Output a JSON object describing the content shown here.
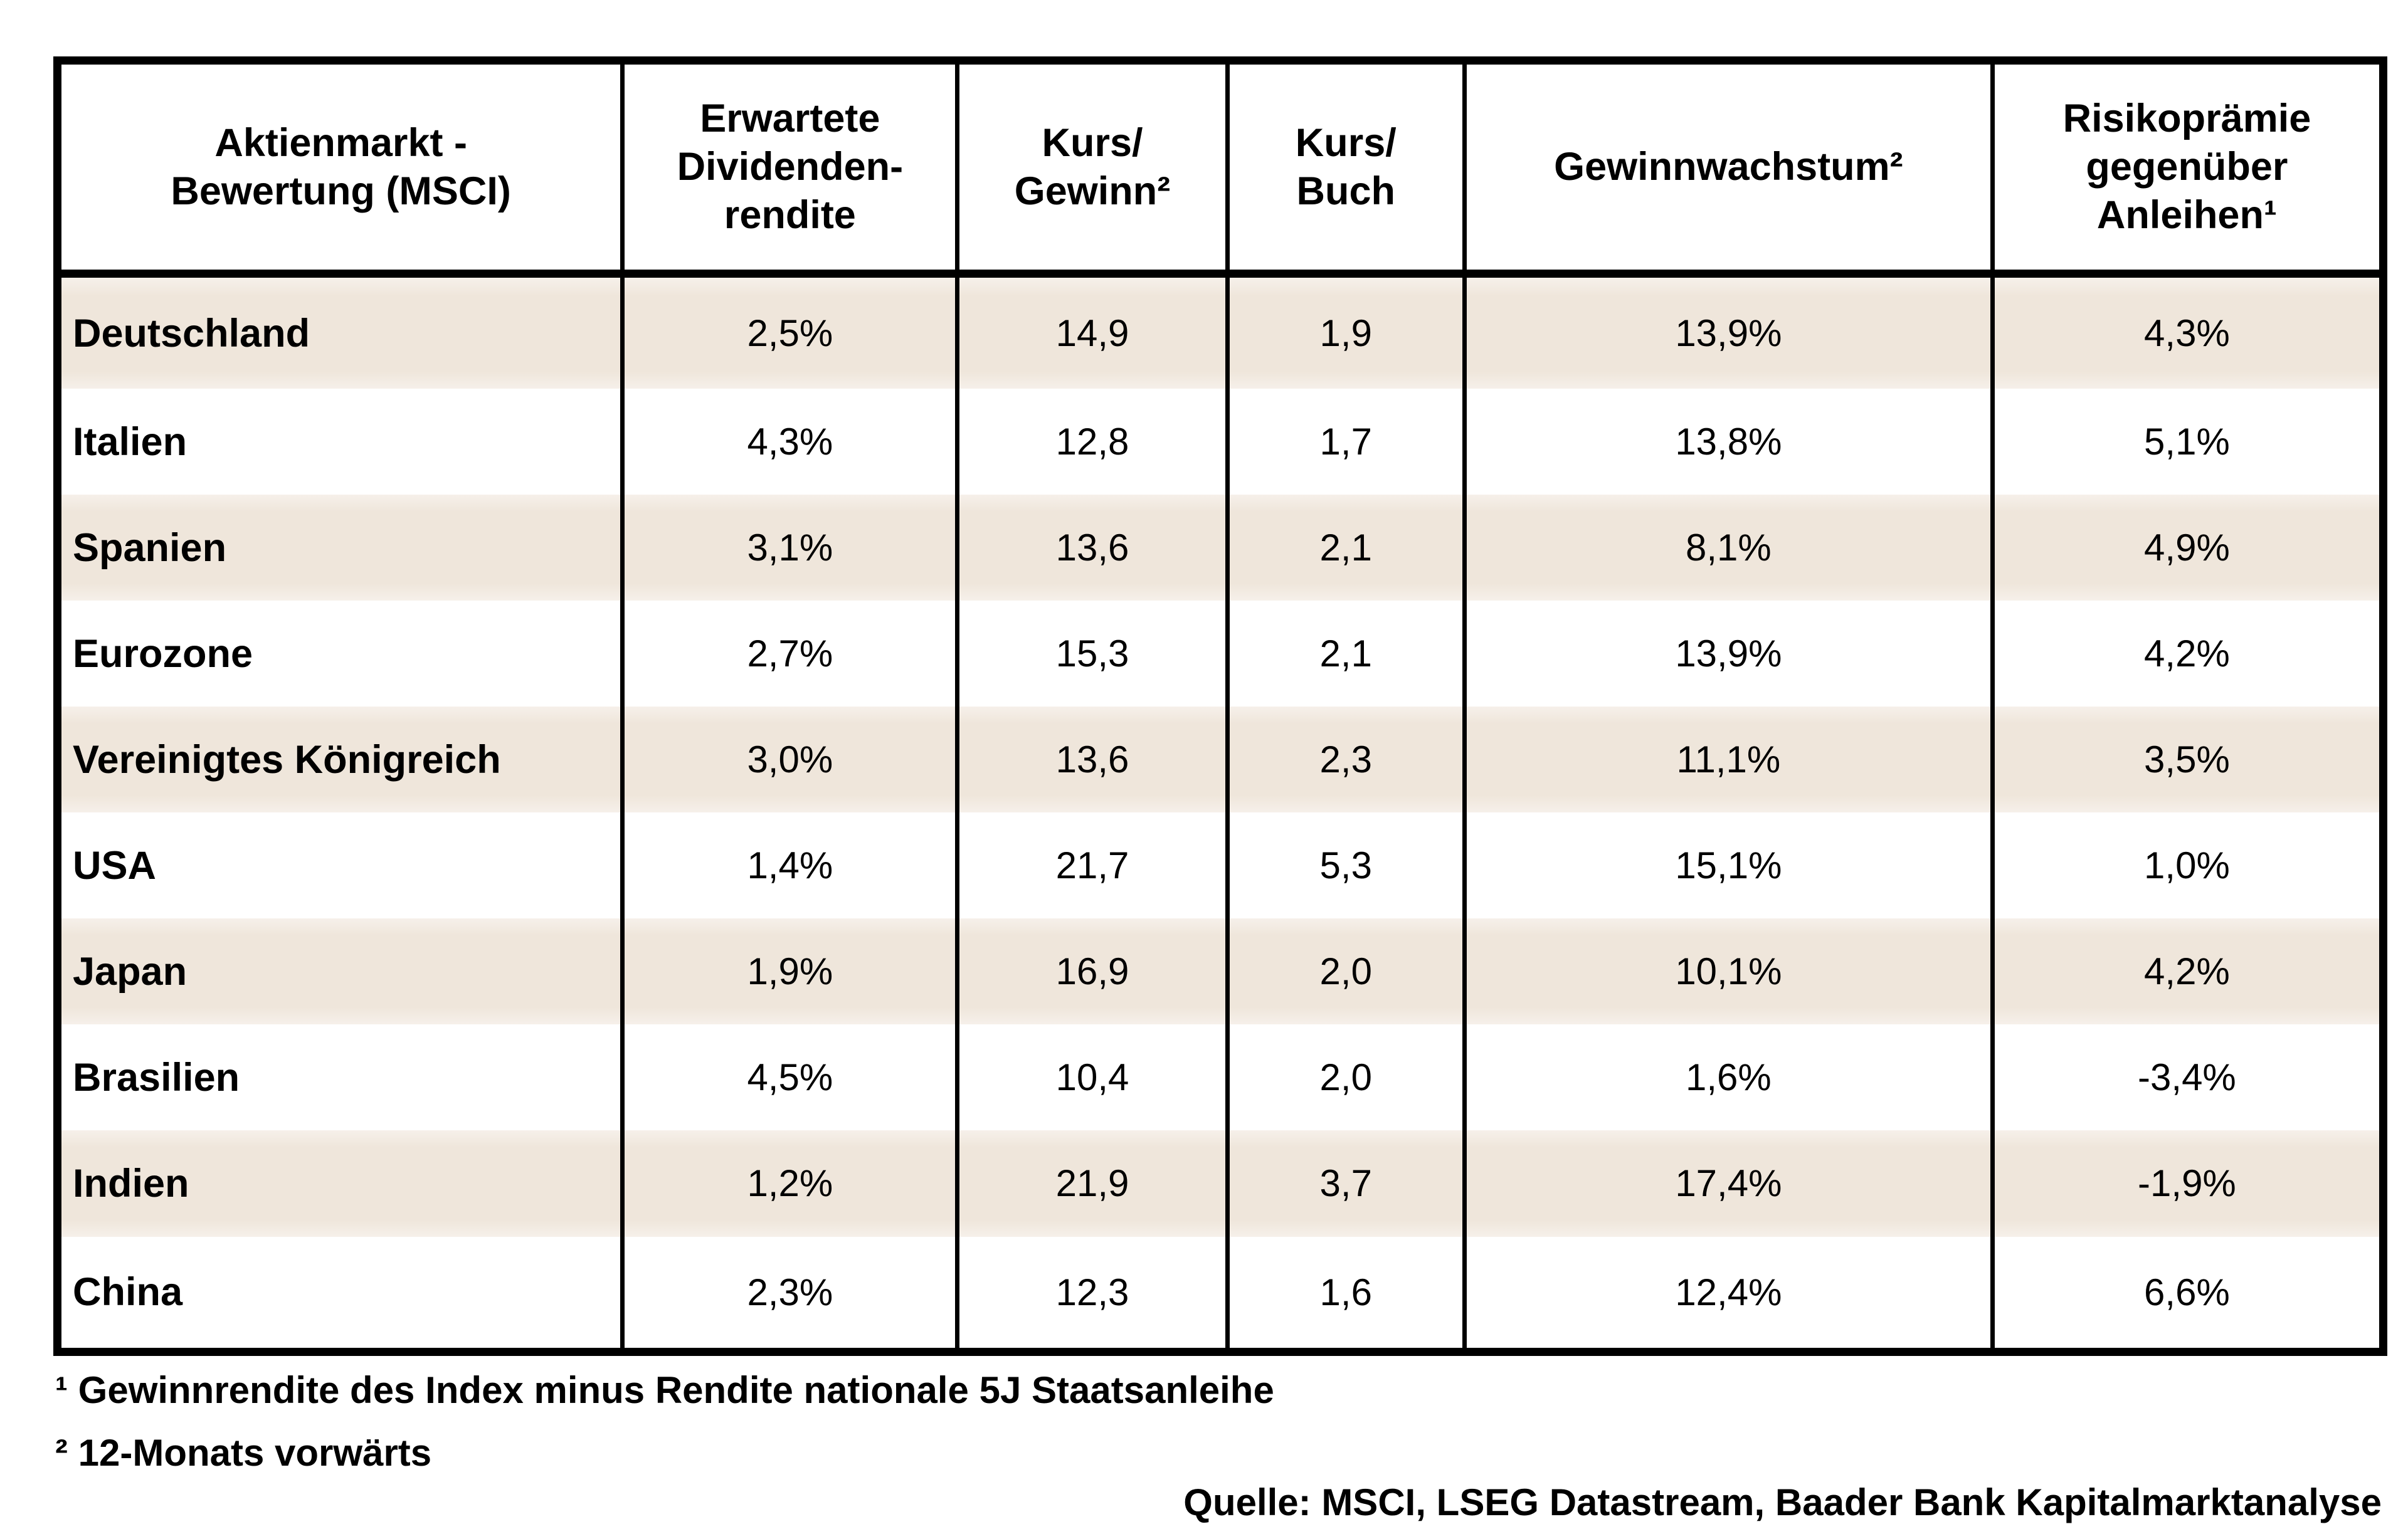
{
  "colors": {
    "stripe": "#efe6db",
    "border": "#000000",
    "text": "#000000",
    "background": "#ffffff"
  },
  "chart_data": {
    "type": "table",
    "title": "Aktienmarkt - Bewertung (MSCI)",
    "columns": [
      "Aktienmarkt -\nBewertung (MSCI)",
      "Erwartete\nDividenden-\nrendite",
      "Kurs/\nGewinn²",
      "Kurs/\nBuch",
      "Gewinnwachstum²",
      "Risikoprämie\ngegenüber\nAnleihen¹"
    ],
    "rows": [
      {
        "country": "Deutschland",
        "values": [
          "2,5%",
          "14,9",
          "1,9",
          "13,9%",
          "4,3%"
        ]
      },
      {
        "country": "Italien",
        "values": [
          "4,3%",
          "12,8",
          "1,7",
          "13,8%",
          "5,1%"
        ]
      },
      {
        "country": "Spanien",
        "values": [
          "3,1%",
          "13,6",
          "2,1",
          "8,1%",
          "4,9%"
        ]
      },
      {
        "country": "Eurozone",
        "values": [
          "2,7%",
          "15,3",
          "2,1",
          "13,9%",
          "4,2%"
        ]
      },
      {
        "country": "Vereinigtes Königreich",
        "values": [
          "3,0%",
          "13,6",
          "2,3",
          "11,1%",
          "3,5%"
        ]
      },
      {
        "country": "USA",
        "values": [
          "1,4%",
          "21,7",
          "5,3",
          "15,1%",
          "1,0%"
        ]
      },
      {
        "country": "Japan",
        "values": [
          "1,9%",
          "16,9",
          "2,0",
          "10,1%",
          "4,2%"
        ]
      },
      {
        "country": "Brasilien",
        "values": [
          "4,5%",
          "10,4",
          "2,0",
          "1,6%",
          "-3,4%"
        ]
      },
      {
        "country": "Indien",
        "values": [
          "1,2%",
          "21,9",
          "3,7",
          "17,4%",
          "-1,9%"
        ]
      },
      {
        "country": "China",
        "values": [
          "2,3%",
          "12,3",
          "1,6",
          "12,4%",
          "6,6%"
        ]
      }
    ],
    "footnotes": [
      "¹ Gewinnrendite des Index minus Rendite nationale 5J Staatsanleihe",
      "² 12-Monats vorwärts"
    ],
    "source": "Quelle: MSCI, LSEG Datastream, Baader Bank Kapitalmarktanalyse"
  }
}
